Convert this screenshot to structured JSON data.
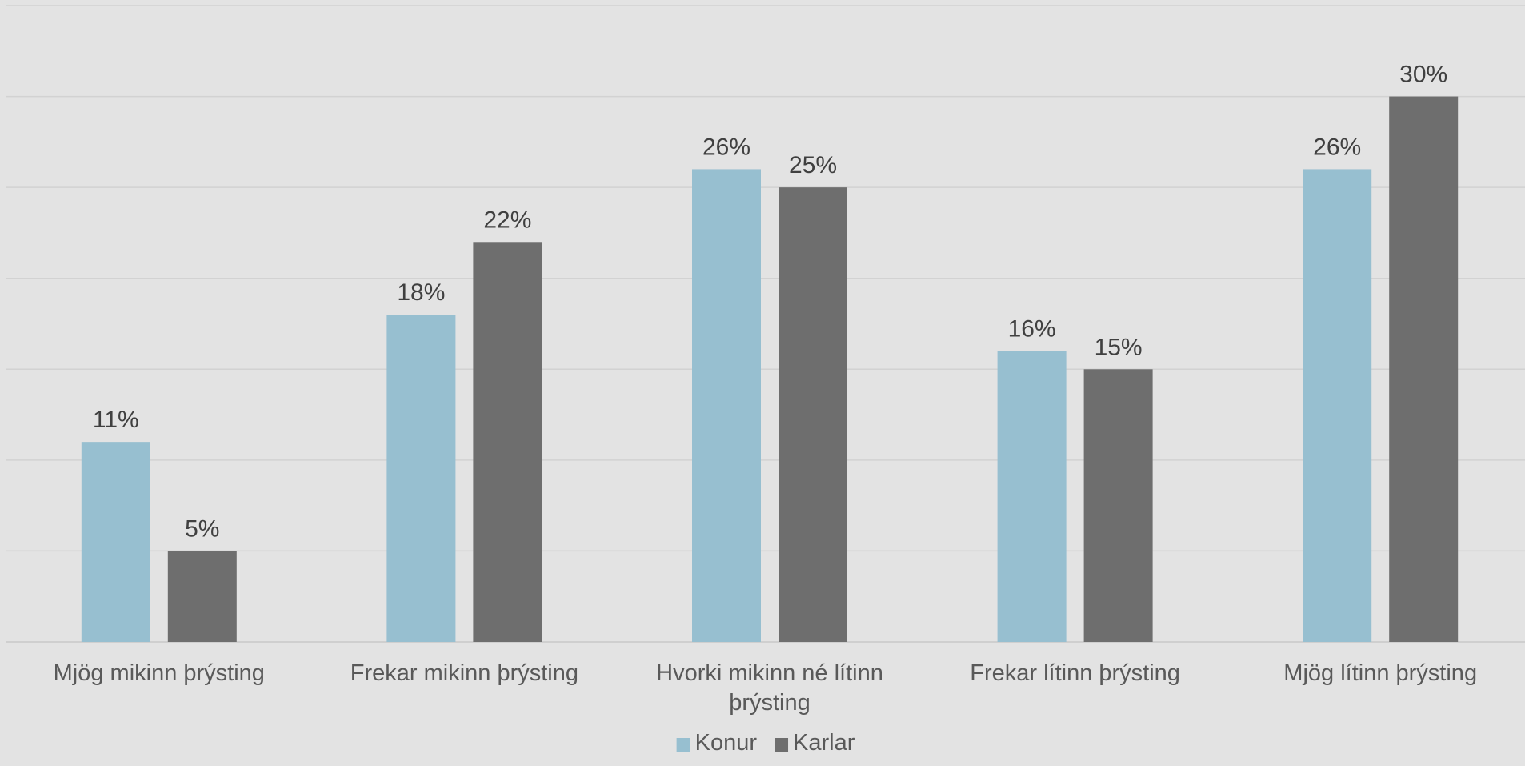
{
  "chart_data": {
    "type": "bar",
    "categories": [
      [
        "Mjög mikinn þrýsting"
      ],
      [
        "Frekar mikinn þrýsting"
      ],
      [
        "Hvorki mikinn né lítinn",
        "þrýsting"
      ],
      [
        "Frekar lítinn þrýsting"
      ],
      [
        "Mjög lítinn þrýsting"
      ]
    ],
    "series": [
      {
        "name": "Konur",
        "color": "#97bfd0",
        "values": [
          11,
          18,
          26,
          16,
          26
        ],
        "labels": [
          "11%",
          "18%",
          "26%",
          "16%",
          "26%"
        ]
      },
      {
        "name": "Karlar",
        "color": "#6e6e6e",
        "values": [
          5,
          22,
          25,
          15,
          30
        ],
        "labels": [
          "5%",
          "22%",
          "25%",
          "15%",
          "30%"
        ]
      }
    ],
    "ylim": [
      0,
      35
    ],
    "grid_step": 5,
    "value_unit": "%",
    "grid": true,
    "legend_position": "bottom-center"
  }
}
